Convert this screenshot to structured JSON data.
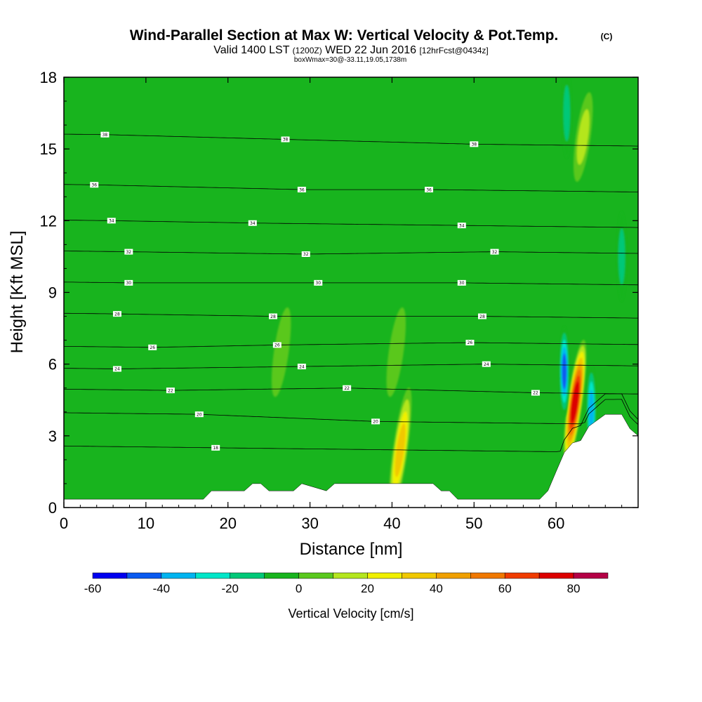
{
  "chart_data": {
    "type": "heatmap",
    "title": "Wind-Parallel Section at Max W: Vertical Velocity & Pot.Temp.",
    "title_mark": "(C)",
    "subtitle_parts": [
      "Valid 1400 LST",
      "(1200Z)",
      "WED 22 Jun 2016",
      "[12hrFcst@0434z]"
    ],
    "subtitle2": "boxWmax=30@-33.11,19.05,1738m",
    "xlabel": "Distance [nm]",
    "ylabel": "Height [Kft MSL]",
    "xlim": [
      0,
      70
    ],
    "ylim": [
      0,
      18
    ],
    "x_ticks": [
      0,
      10,
      20,
      30,
      40,
      50,
      60
    ],
    "y_ticks": [
      0,
      3,
      6,
      9,
      12,
      15,
      18
    ],
    "colorbar": {
      "label": "Vertical Velocity [cm/s]",
      "range": [
        -60,
        90
      ],
      "bin_width": 10,
      "tick_values": [
        -60,
        -40,
        -20,
        0,
        20,
        40,
        60,
        80
      ],
      "colors": [
        "#0000f0",
        "#0a5af0",
        "#00b4f0",
        "#00e6c8",
        "#00c878",
        "#18b41e",
        "#5ac81e",
        "#b4e61e",
        "#f0f000",
        "#f0c800",
        "#f0a000",
        "#f07800",
        "#f03c00",
        "#dc0000",
        "#b40046"
      ]
    },
    "background_value_cm_s": 0,
    "vertical_velocity_features": [
      {
        "x": 41,
        "y": 2.4,
        "peak_cm_s": 40,
        "kind": "updraft"
      },
      {
        "x": 62.3,
        "y": 4.4,
        "peak_cm_s": 80,
        "kind": "updraft"
      },
      {
        "x": 61,
        "y": 5.7,
        "peak_cm_s": -50,
        "kind": "downdraft"
      },
      {
        "x": 64.3,
        "y": 4.1,
        "peak_cm_s": -40,
        "kind": "downdraft"
      },
      {
        "x": 63.3,
        "y": 15.5,
        "peak_cm_s": 20,
        "kind": "updraft"
      },
      {
        "x": 61.3,
        "y": 16.5,
        "peak_cm_s": -20,
        "kind": "downdraft"
      },
      {
        "x": 68,
        "y": 10.5,
        "peak_cm_s": -20,
        "kind": "downdraft"
      },
      {
        "x": 26.5,
        "y": 6.5,
        "peak_cm_s": 10,
        "kind": "updraft"
      },
      {
        "x": 40.5,
        "y": 6.5,
        "peak_cm_s": 10,
        "kind": "updraft"
      }
    ],
    "isentrope_labels": [
      {
        "text": "38",
        "x": 5,
        "y": 15.6
      },
      {
        "text": "38",
        "x": 27,
        "y": 15.4
      },
      {
        "text": "38",
        "x": 50,
        "y": 15.2
      },
      {
        "text": "36",
        "x": 3.7,
        "y": 13.5
      },
      {
        "text": "36",
        "x": 29,
        "y": 13.3
      },
      {
        "text": "36",
        "x": 44.5,
        "y": 13.3
      },
      {
        "text": "34",
        "x": 5.8,
        "y": 12.0
      },
      {
        "text": "34",
        "x": 23,
        "y": 11.9
      },
      {
        "text": "34",
        "x": 48.5,
        "y": 11.8
      },
      {
        "text": "32",
        "x": 7.9,
        "y": 10.7
      },
      {
        "text": "32",
        "x": 29.5,
        "y": 10.6
      },
      {
        "text": "32",
        "x": 52.5,
        "y": 10.7
      },
      {
        "text": "30",
        "x": 7.9,
        "y": 9.4
      },
      {
        "text": "30",
        "x": 31,
        "y": 9.4
      },
      {
        "text": "30",
        "x": 48.5,
        "y": 9.4
      },
      {
        "text": "28",
        "x": 6.5,
        "y": 8.1
      },
      {
        "text": "28",
        "x": 25.5,
        "y": 8.0
      },
      {
        "text": "28",
        "x": 51,
        "y": 8.0
      },
      {
        "text": "26",
        "x": 10.8,
        "y": 6.7
      },
      {
        "text": "26",
        "x": 26,
        "y": 6.8
      },
      {
        "text": "26",
        "x": 49.5,
        "y": 6.9
      },
      {
        "text": "24",
        "x": 6.5,
        "y": 5.8
      },
      {
        "text": "24",
        "x": 29,
        "y": 5.9
      },
      {
        "text": "24",
        "x": 51.5,
        "y": 6.0
      },
      {
        "text": "22",
        "x": 13,
        "y": 4.9
      },
      {
        "text": "22",
        "x": 34.5,
        "y": 5.0
      },
      {
        "text": "22",
        "x": 57.5,
        "y": 4.8
      },
      {
        "text": "20",
        "x": 16.5,
        "y": 3.9
      },
      {
        "text": "20",
        "x": 38,
        "y": 3.6
      },
      {
        "text": "18",
        "x": 18.5,
        "y": 2.5
      }
    ],
    "terrain_profile": {
      "x": [
        0,
        17,
        18,
        22,
        23,
        24,
        25,
        28,
        29,
        32,
        33,
        45,
        46,
        47,
        48,
        58,
        59,
        60,
        61,
        62,
        63,
        64,
        66,
        68,
        69,
        70
      ],
      "height_kft": [
        0.35,
        0.35,
        0.7,
        0.7,
        1.0,
        1.0,
        0.7,
        0.7,
        1.0,
        0.7,
        1.0,
        1.0,
        0.7,
        0.7,
        0.35,
        0.35,
        0.7,
        1.5,
        2.3,
        2.7,
        2.8,
        3.4,
        3.9,
        3.9,
        3.3,
        3.0
      ]
    }
  }
}
